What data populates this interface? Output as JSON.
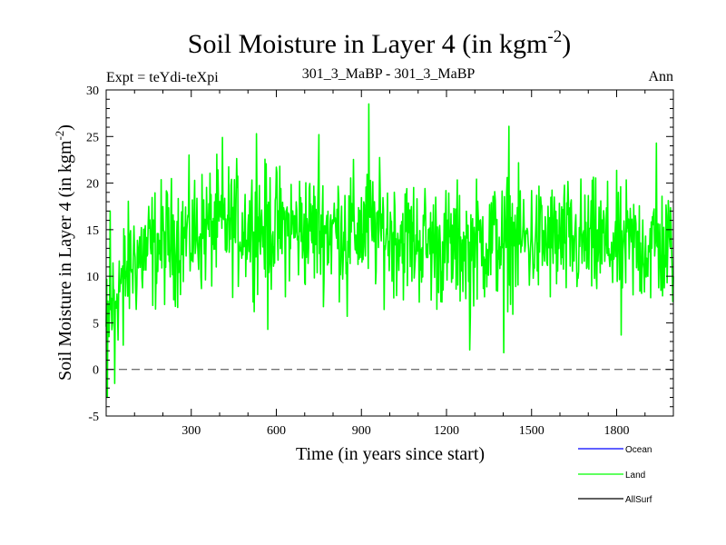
{
  "chart_data": {
    "type": "line",
    "title": "Soil Moisture in Layer 4 (in kgm",
    "title_sup": "-2",
    "title_close": ")",
    "subtitle_left": "Expt = teYdi-teXpi",
    "subtitle_center": "301_3_MaBP - 301_3_MaBP",
    "subtitle_right": "Ann",
    "xlabel": "Time (in years since start)",
    "ylabel": "Soil Moisture in Layer 4 (in kgm",
    "ylabel_sup": "-2",
    "ylabel_close": ")",
    "xlim": [
      0,
      2000
    ],
    "ylim": [
      -5,
      30
    ],
    "xticks": [
      300,
      600,
      900,
      1200,
      1500,
      1800
    ],
    "xtick_labels": [
      "300",
      "600",
      "900",
      "1200",
      "1500",
      "1800"
    ],
    "yticks": [
      -5,
      0,
      5,
      10,
      15,
      20,
      25,
      30
    ],
    "ytick_labels": [
      "-5",
      "0",
      "5",
      "10",
      "15",
      "20",
      "25",
      "30"
    ],
    "zero_line": 0,
    "series": [
      {
        "name": "Ocean",
        "color": "#0000ff",
        "values": []
      },
      {
        "name": "Land",
        "color": "#00ff00",
        "x_start": 0,
        "x_step": 2,
        "mean_profile": [
          [
            0,
            4
          ],
          [
            40,
            9
          ],
          [
            100,
            12
          ],
          [
            200,
            13.5
          ],
          [
            400,
            15.5
          ],
          [
            700,
            15
          ],
          [
            950,
            15
          ],
          [
            1200,
            13
          ],
          [
            1400,
            14
          ],
          [
            1700,
            13.5
          ],
          [
            2000,
            13
          ]
        ],
        "noise_amplitude": 3.2,
        "extremes": [
          [
            4,
            -3
          ],
          [
            14,
            17
          ],
          [
            30,
            -1.5
          ],
          [
            60,
            2.6
          ],
          [
            410,
            24.9
          ],
          [
            530,
            25.3
          ],
          [
            570,
            4.3
          ],
          [
            750,
            25.2
          ],
          [
            850,
            5.7
          ],
          [
            926,
            28.5
          ],
          [
            1282,
            2.1
          ],
          [
            1402,
            1.8
          ],
          [
            1420,
            26.1
          ],
          [
            1815,
            3.7
          ],
          [
            1940,
            24.3
          ]
        ]
      },
      {
        "name": "AllSurf",
        "color": "#000000",
        "values": []
      }
    ],
    "legend_position": "bottom-right"
  }
}
